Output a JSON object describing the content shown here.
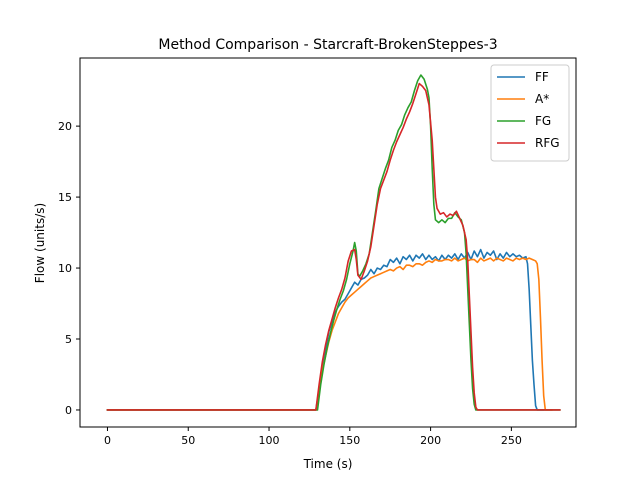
{
  "chart_data": {
    "type": "line",
    "title": "Method Comparison - Starcraft-BrokenSteppes-3",
    "xlabel": "Time (s)",
    "ylabel": "Flow (units/s)",
    "xlim": [
      -17,
      290
    ],
    "ylim": [
      -1.2,
      24.8
    ],
    "xticks": [
      0,
      50,
      100,
      150,
      200,
      250
    ],
    "yticks": [
      0,
      5,
      10,
      15,
      20
    ],
    "grid": false,
    "legend_position": "top-right",
    "series": [
      {
        "name": "FF",
        "color": "#1f77b4",
        "points": [
          [
            0,
            0
          ],
          [
            129,
            0
          ],
          [
            131,
            1.5
          ],
          [
            133,
            3.2
          ],
          [
            135,
            4.2
          ],
          [
            137,
            5.5
          ],
          [
            139,
            6.2
          ],
          [
            141,
            6.9
          ],
          [
            143,
            7.3
          ],
          [
            145,
            7.6
          ],
          [
            147,
            7.8
          ],
          [
            149,
            8.2
          ],
          [
            151,
            8.6
          ],
          [
            153,
            9.0
          ],
          [
            155,
            8.8
          ],
          [
            157,
            9.2
          ],
          [
            159,
            9.3
          ],
          [
            161,
            9.5
          ],
          [
            163,
            9.9
          ],
          [
            165,
            9.6
          ],
          [
            167,
            10.0
          ],
          [
            169,
            9.9
          ],
          [
            171,
            10.2
          ],
          [
            173,
            10.1
          ],
          [
            175,
            10.6
          ],
          [
            177,
            10.4
          ],
          [
            179,
            10.7
          ],
          [
            181,
            10.3
          ],
          [
            183,
            10.8
          ],
          [
            185,
            10.6
          ],
          [
            187,
            10.9
          ],
          [
            189,
            10.5
          ],
          [
            191,
            10.9
          ],
          [
            193,
            10.7
          ],
          [
            195,
            11.0
          ],
          [
            197,
            10.6
          ],
          [
            199,
            10.9
          ],
          [
            201,
            10.6
          ],
          [
            203,
            10.8
          ],
          [
            205,
            10.5
          ],
          [
            207,
            10.9
          ],
          [
            209,
            10.6
          ],
          [
            211,
            10.9
          ],
          [
            213,
            10.7
          ],
          [
            215,
            11.0
          ],
          [
            217,
            10.6
          ],
          [
            219,
            11.0
          ],
          [
            221,
            10.7
          ],
          [
            223,
            11.1
          ],
          [
            225,
            10.6
          ],
          [
            227,
            11.2
          ],
          [
            229,
            10.8
          ],
          [
            231,
            11.3
          ],
          [
            233,
            10.7
          ],
          [
            235,
            11.1
          ],
          [
            237,
            10.9
          ],
          [
            239,
            11.2
          ],
          [
            241,
            10.6
          ],
          [
            243,
            11.0
          ],
          [
            245,
            10.7
          ],
          [
            247,
            11.1
          ],
          [
            249,
            10.8
          ],
          [
            251,
            11.0
          ],
          [
            253,
            10.8
          ],
          [
            255,
            10.9
          ],
          [
            257,
            10.7
          ],
          [
            259,
            10.8
          ],
          [
            260,
            10.3
          ],
          [
            261,
            8.5
          ],
          [
            262,
            6.0
          ],
          [
            263,
            3.5
          ],
          [
            264,
            1.8
          ],
          [
            265,
            0.3
          ],
          [
            266,
            0
          ],
          [
            270,
            0
          ]
        ]
      },
      {
        "name": "A*",
        "color": "#ff7f0e",
        "points": [
          [
            0,
            0
          ],
          [
            129,
            0
          ],
          [
            131,
            1.2
          ],
          [
            133,
            2.8
          ],
          [
            135,
            3.8
          ],
          [
            137,
            4.8
          ],
          [
            139,
            5.6
          ],
          [
            141,
            6.2
          ],
          [
            143,
            6.8
          ],
          [
            145,
            7.2
          ],
          [
            147,
            7.6
          ],
          [
            149,
            7.9
          ],
          [
            151,
            8.1
          ],
          [
            153,
            8.3
          ],
          [
            155,
            8.5
          ],
          [
            157,
            8.7
          ],
          [
            159,
            8.9
          ],
          [
            161,
            9.1
          ],
          [
            163,
            9.3
          ],
          [
            165,
            9.4
          ],
          [
            167,
            9.5
          ],
          [
            169,
            9.6
          ],
          [
            171,
            9.7
          ],
          [
            173,
            9.8
          ],
          [
            175,
            9.9
          ],
          [
            177,
            9.8
          ],
          [
            179,
            10.0
          ],
          [
            181,
            10.1
          ],
          [
            183,
            9.9
          ],
          [
            185,
            10.2
          ],
          [
            187,
            10.2
          ],
          [
            189,
            10.1
          ],
          [
            191,
            10.3
          ],
          [
            193,
            10.3
          ],
          [
            195,
            10.2
          ],
          [
            197,
            10.4
          ],
          [
            199,
            10.5
          ],
          [
            201,
            10.4
          ],
          [
            203,
            10.6
          ],
          [
            205,
            10.5
          ],
          [
            207,
            10.5
          ],
          [
            209,
            10.6
          ],
          [
            211,
            10.6
          ],
          [
            213,
            10.5
          ],
          [
            215,
            10.7
          ],
          [
            217,
            10.5
          ],
          [
            219,
            10.6
          ],
          [
            221,
            10.7
          ],
          [
            223,
            10.5
          ],
          [
            225,
            10.6
          ],
          [
            227,
            10.6
          ],
          [
            229,
            10.4
          ],
          [
            231,
            10.7
          ],
          [
            233,
            10.5
          ],
          [
            235,
            10.6
          ],
          [
            237,
            10.7
          ],
          [
            239,
            10.5
          ],
          [
            241,
            10.7
          ],
          [
            243,
            10.6
          ],
          [
            245,
            10.5
          ],
          [
            247,
            10.7
          ],
          [
            249,
            10.6
          ],
          [
            251,
            10.5
          ],
          [
            253,
            10.7
          ],
          [
            255,
            10.6
          ],
          [
            257,
            10.7
          ],
          [
            259,
            10.6
          ],
          [
            261,
            10.7
          ],
          [
            263,
            10.6
          ],
          [
            265,
            10.5
          ],
          [
            266,
            10.3
          ],
          [
            267,
            9.2
          ],
          [
            268,
            6.5
          ],
          [
            269,
            3.5
          ],
          [
            270,
            1.0
          ],
          [
            271,
            0
          ],
          [
            275,
            0
          ]
        ]
      },
      {
        "name": "FG",
        "color": "#2ca02c",
        "points": [
          [
            0,
            0
          ],
          [
            130,
            0
          ],
          [
            132,
            1.8
          ],
          [
            134,
            3.2
          ],
          [
            136,
            4.4
          ],
          [
            138,
            5.4
          ],
          [
            140,
            6.3
          ],
          [
            142,
            7.1
          ],
          [
            144,
            7.8
          ],
          [
            146,
            8.4
          ],
          [
            148,
            9.2
          ],
          [
            150,
            10.3
          ],
          [
            152,
            11.2
          ],
          [
            153,
            11.8
          ],
          [
            154,
            11.2
          ],
          [
            155,
            9.6
          ],
          [
            156,
            9.4
          ],
          [
            158,
            9.8
          ],
          [
            160,
            10.3
          ],
          [
            162,
            11.0
          ],
          [
            164,
            12.5
          ],
          [
            166,
            14.0
          ],
          [
            168,
            15.6
          ],
          [
            170,
            16.3
          ],
          [
            172,
            17.0
          ],
          [
            174,
            17.6
          ],
          [
            176,
            18.5
          ],
          [
            178,
            19.0
          ],
          [
            180,
            19.7
          ],
          [
            182,
            20.1
          ],
          [
            184,
            20.8
          ],
          [
            186,
            21.3
          ],
          [
            188,
            21.7
          ],
          [
            190,
            22.5
          ],
          [
            192,
            23.2
          ],
          [
            194,
            23.6
          ],
          [
            196,
            23.3
          ],
          [
            198,
            22.6
          ],
          [
            199,
            22.0
          ],
          [
            200,
            20.0
          ],
          [
            201,
            17.0
          ],
          [
            202,
            14.5
          ],
          [
            203,
            13.4
          ],
          [
            205,
            13.2
          ],
          [
            207,
            13.4
          ],
          [
            209,
            13.2
          ],
          [
            211,
            13.5
          ],
          [
            213,
            13.5
          ],
          [
            215,
            13.9
          ],
          [
            217,
            13.6
          ],
          [
            219,
            13.4
          ],
          [
            221,
            12.5
          ],
          [
            222,
            11.0
          ],
          [
            223,
            8.5
          ],
          [
            224,
            6.0
          ],
          [
            225,
            3.5
          ],
          [
            226,
            1.5
          ],
          [
            227,
            0.4
          ],
          [
            228,
            0
          ],
          [
            280,
            0
          ]
        ]
      },
      {
        "name": "RFG",
        "color": "#d62728",
        "points": [
          [
            0,
            0
          ],
          [
            129,
            0
          ],
          [
            131,
            1.8
          ],
          [
            133,
            3.4
          ],
          [
            135,
            4.6
          ],
          [
            137,
            5.6
          ],
          [
            139,
            6.4
          ],
          [
            141,
            7.2
          ],
          [
            143,
            7.9
          ],
          [
            145,
            8.5
          ],
          [
            147,
            9.3
          ],
          [
            149,
            10.5
          ],
          [
            151,
            11.2
          ],
          [
            153,
            11.3
          ],
          [
            154,
            10.6
          ],
          [
            155,
            9.5
          ],
          [
            157,
            9.2
          ],
          [
            159,
            9.8
          ],
          [
            161,
            10.5
          ],
          [
            163,
            11.5
          ],
          [
            165,
            13.0
          ],
          [
            167,
            14.5
          ],
          [
            169,
            15.6
          ],
          [
            171,
            16.2
          ],
          [
            173,
            16.8
          ],
          [
            175,
            17.6
          ],
          [
            177,
            18.3
          ],
          [
            179,
            18.9
          ],
          [
            181,
            19.4
          ],
          [
            183,
            19.9
          ],
          [
            185,
            20.5
          ],
          [
            187,
            21.0
          ],
          [
            189,
            21.6
          ],
          [
            191,
            22.3
          ],
          [
            193,
            23.0
          ],
          [
            195,
            22.8
          ],
          [
            197,
            22.5
          ],
          [
            199,
            21.5
          ],
          [
            201,
            19.0
          ],
          [
            202,
            17.0
          ],
          [
            203,
            15.0
          ],
          [
            204,
            14.2
          ],
          [
            206,
            13.8
          ],
          [
            208,
            13.9
          ],
          [
            210,
            13.6
          ],
          [
            212,
            13.8
          ],
          [
            214,
            13.7
          ],
          [
            216,
            14.0
          ],
          [
            218,
            13.5
          ],
          [
            220,
            13.0
          ],
          [
            222,
            12.0
          ],
          [
            223,
            10.5
          ],
          [
            224,
            8.0
          ],
          [
            225,
            5.5
          ],
          [
            226,
            3.0
          ],
          [
            227,
            1.2
          ],
          [
            228,
            0.2
          ],
          [
            229,
            0
          ],
          [
            280,
            0
          ]
        ]
      }
    ]
  }
}
